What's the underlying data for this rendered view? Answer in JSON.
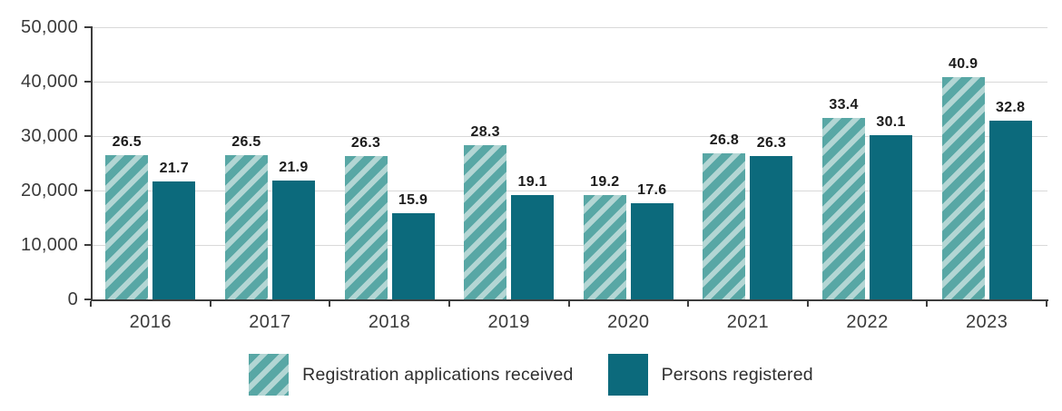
{
  "chart_data": {
    "type": "bar",
    "title": "",
    "categories": [
      "2016",
      "2017",
      "2018",
      "2019",
      "2020",
      "2021",
      "2022",
      "2023"
    ],
    "series": [
      {
        "name": "Registration applications received",
        "values": [
          26.5,
          26.5,
          26.3,
          28.3,
          19.2,
          26.8,
          33.4,
          40.9
        ],
        "style": "hatched",
        "color": "#58a7a5",
        "hatch_color": "#b3d6d4"
      },
      {
        "name": "Persons registered",
        "values": [
          21.7,
          21.9,
          15.9,
          19.1,
          17.6,
          26.3,
          30.1,
          32.8
        ],
        "style": "solid",
        "color": "#0c6a7c"
      }
    ],
    "value_unit": "thousands",
    "ylim_thousands": [
      0,
      50
    ],
    "y_ticks": [
      {
        "value": 50,
        "label": "50,000"
      },
      {
        "value": 40,
        "label": "40,000"
      },
      {
        "value": 30,
        "label": "30,000"
      },
      {
        "value": 20,
        "label": "20,000"
      },
      {
        "value": 10,
        "label": "10,000"
      },
      {
        "value": 0,
        "label": "0"
      }
    ],
    "data_labels": true,
    "grid": true,
    "legend_position": "bottom"
  },
  "colors": {
    "series_hatched_base": "#58a7a5",
    "series_hatched_stripe": "#b3d6d4",
    "series_solid": "#0c6a7c",
    "axis_line": "#3d3d3d",
    "gridline": "#d9d9d9",
    "value_label_text": "#1c1c1c",
    "axis_tick_text": "#3a3a3a",
    "legend_text": "#2f2f2f"
  }
}
